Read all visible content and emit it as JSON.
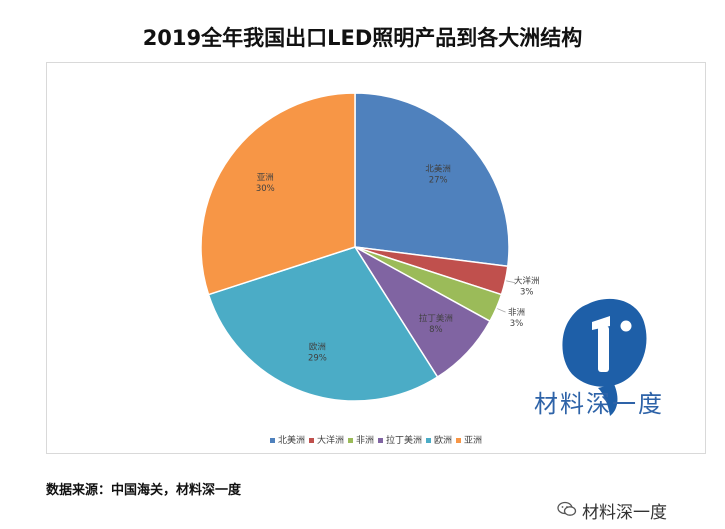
{
  "title": "2019全年我国出口LED照明产品到各大洲结构",
  "chart_data": {
    "type": "pie",
    "title": "2019全年我国出口LED照明产品到各大洲结构",
    "slices": [
      {
        "label": "北美洲",
        "value": 27,
        "percent_label": "27%",
        "color": "#4f81bd"
      },
      {
        "label": "大洋洲",
        "value": 3,
        "percent_label": "3%",
        "color": "#c0504d"
      },
      {
        "label": "非洲",
        "value": 3,
        "percent_label": "3%",
        "color": "#9bbb59"
      },
      {
        "label": "拉丁美洲",
        "value": 8,
        "percent_label": "8%",
        "color": "#8064a2"
      },
      {
        "label": "欧洲",
        "value": 29,
        "percent_label": "29%",
        "color": "#4bacc6"
      },
      {
        "label": "亚洲",
        "value": 30,
        "percent_label": "30%",
        "color": "#f79646"
      }
    ],
    "legend_position": "bottom"
  },
  "logo": {
    "text": "材料深一度",
    "color": "#2e63a8"
  },
  "source_note": "数据来源：中国海关，材料深一度",
  "watermark": "材料深一度"
}
